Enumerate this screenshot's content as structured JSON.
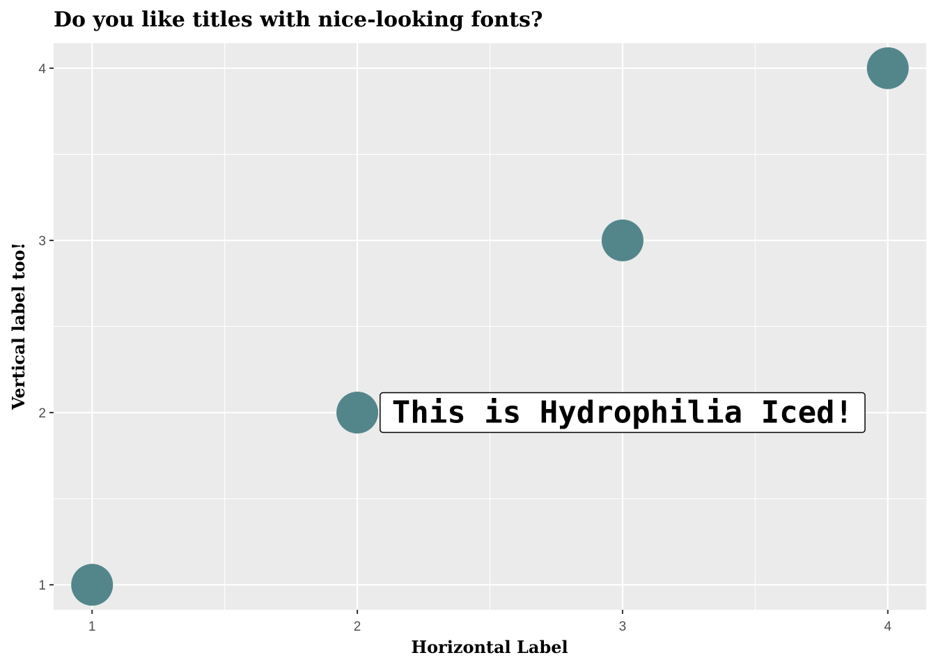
{
  "chart_data": {
    "type": "scatter",
    "title": "Do you like titles with nice-looking fonts?",
    "xlabel": "Horizontal Label",
    "ylabel": "Vertical label too!",
    "x": [
      1,
      2,
      3,
      4
    ],
    "y": [
      1,
      2,
      3,
      4
    ],
    "xlim": [
      0.855,
      4.145
    ],
    "ylim": [
      0.855,
      4.145
    ],
    "x_ticks": [
      1,
      2,
      3,
      4
    ],
    "y_ticks": [
      1,
      2,
      3,
      4
    ],
    "x_tick_labels": [
      "1",
      "2",
      "3",
      "4"
    ],
    "y_tick_labels": [
      "1",
      "2",
      "3",
      "4"
    ],
    "grid": true,
    "point_color": "#53868b",
    "panel_background": "#ebebeb",
    "grid_color": "#ffffff",
    "annotation": {
      "text": "This is Hydrophilia Iced!",
      "x": 3,
      "y": 2
    }
  }
}
